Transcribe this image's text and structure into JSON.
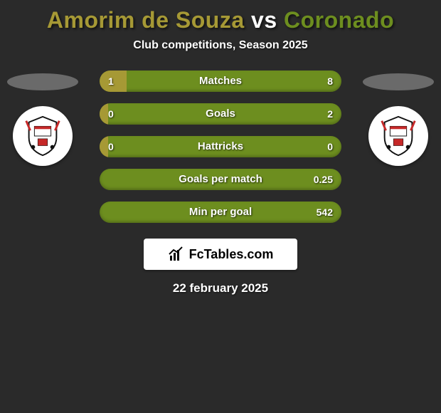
{
  "title": {
    "player1": "Amorim de Souza",
    "vs": "vs",
    "player2": "Coronado"
  },
  "subtitle": "Club competitions, Season 2025",
  "colors": {
    "player1": "#a69935",
    "player2": "#6d8e1f",
    "background": "#2a2a2a",
    "text": "#ffffff"
  },
  "stats": [
    {
      "label": "Matches",
      "left_val": "1",
      "right_val": "8",
      "left_pct": 11.1
    },
    {
      "label": "Goals",
      "left_val": "0",
      "right_val": "2",
      "left_pct": 3.5
    },
    {
      "label": "Hattricks",
      "left_val": "0",
      "right_val": "0",
      "left_pct": 3.5
    },
    {
      "label": "Goals per match",
      "left_val": "",
      "right_val": "0.25",
      "left_pct": 0
    },
    {
      "label": "Min per goal",
      "left_val": "",
      "right_val": "542",
      "left_pct": 0
    }
  ],
  "footer_brand": "FcTables.com",
  "date": "22 february 2025",
  "club": {
    "name": "Corinthians"
  }
}
